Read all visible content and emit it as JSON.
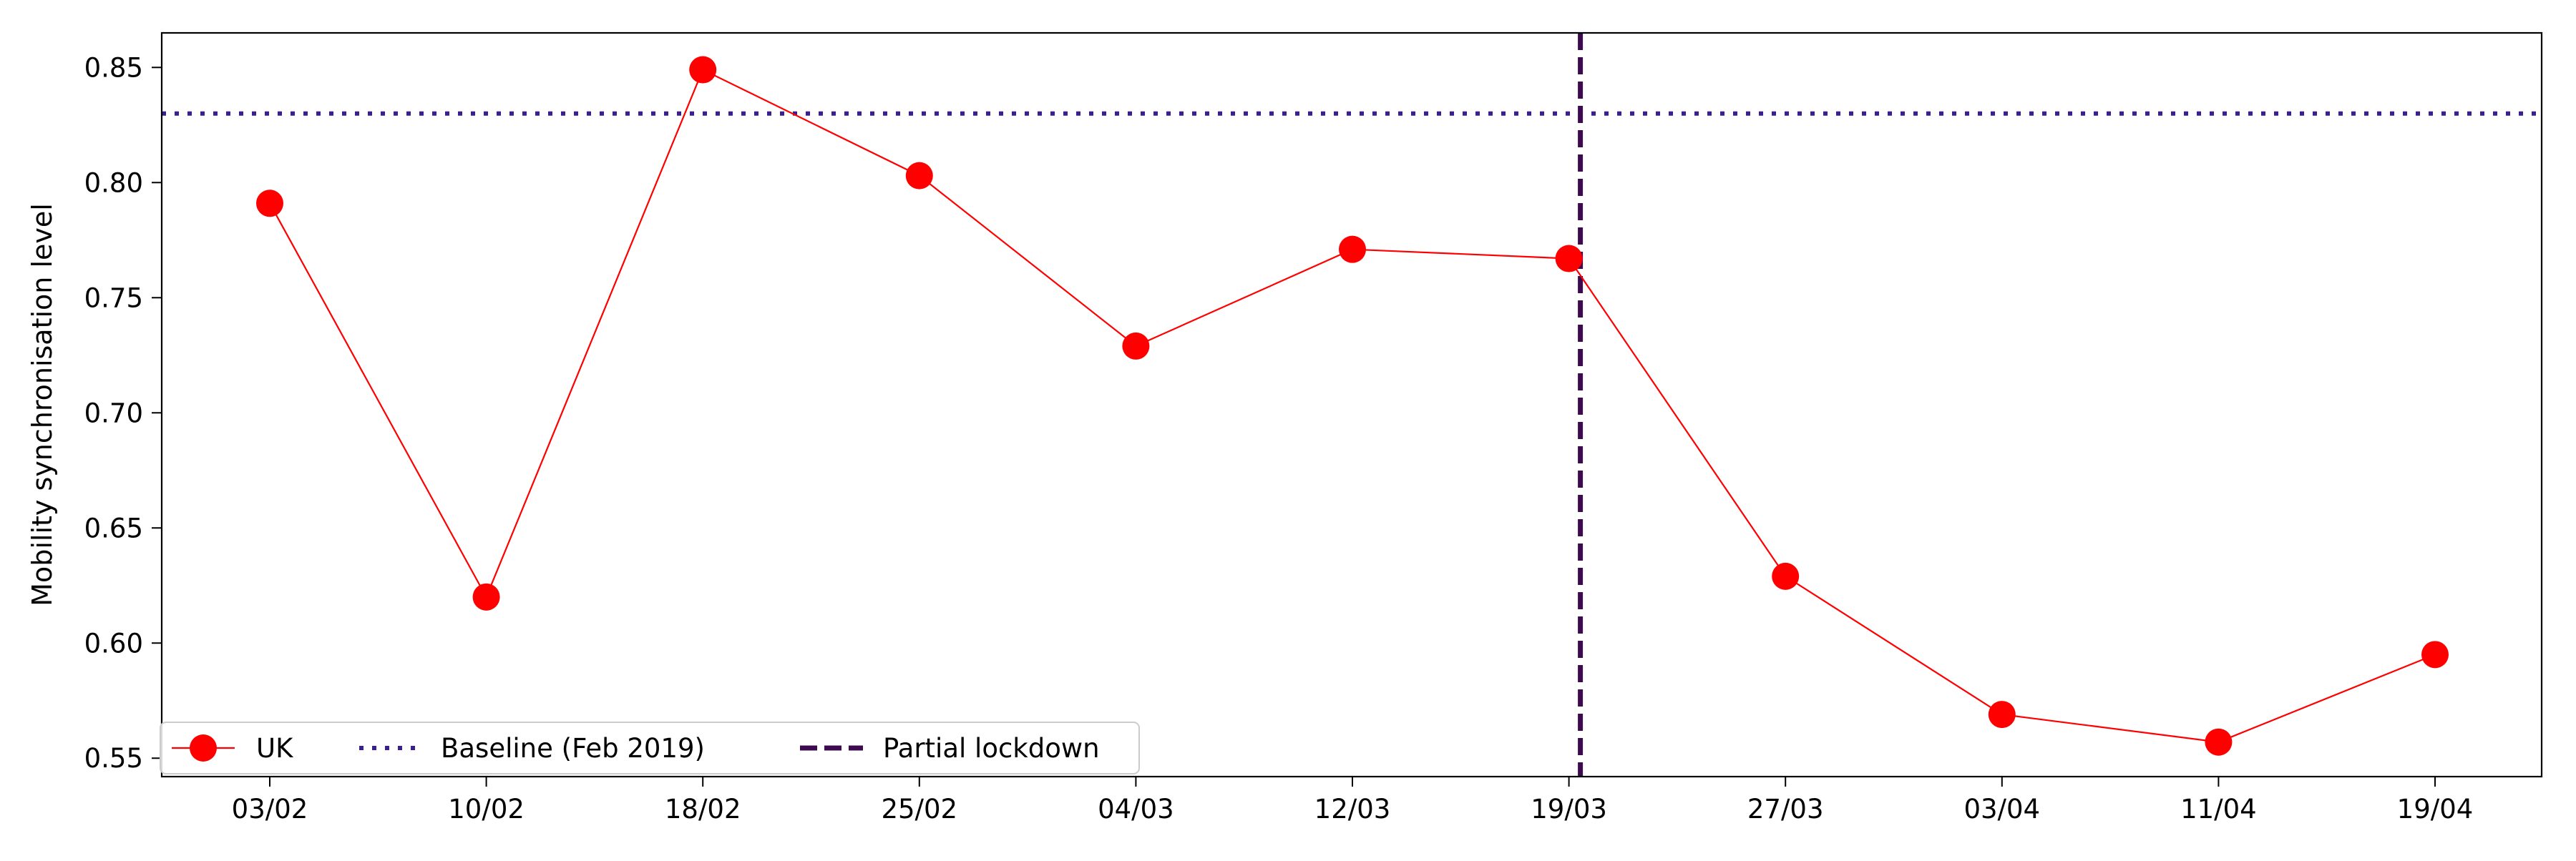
{
  "chart_data": {
    "type": "line",
    "title": "",
    "xlabel": "",
    "ylabel": "Mobility synchronisation level",
    "categories": [
      "03/02",
      "10/02",
      "18/02",
      "25/02",
      "04/03",
      "12/03",
      "19/03",
      "27/03",
      "03/04",
      "11/04",
      "19/04"
    ],
    "series": [
      {
        "name": "UK",
        "values": [
          0.791,
          0.62,
          0.849,
          0.803,
          0.729,
          0.771,
          0.767,
          0.629,
          0.569,
          0.557,
          0.595
        ],
        "color": "#ff0000",
        "marker": "circle",
        "line_style": "solid"
      }
    ],
    "reference_lines": [
      {
        "name": "Baseline (Feb 2019)",
        "orientation": "horizontal",
        "value": 0.83,
        "color": "#3b1f8f",
        "style": "dotted"
      },
      {
        "name": "Partial lockdown",
        "orientation": "vertical",
        "at_category": "19/03",
        "color": "#3d0a4f",
        "style": "dashed"
      }
    ],
    "y_ticks": [
      "0.55",
      "0.60",
      "0.65",
      "0.70",
      "0.75",
      "0.80",
      "0.85"
    ],
    "ylim": [
      0.542,
      0.865
    ],
    "grid": false,
    "legend": {
      "placement": "bottom-left",
      "entries": [
        "UK",
        "Baseline (Feb 2019)",
        "Partial lockdown"
      ]
    }
  }
}
